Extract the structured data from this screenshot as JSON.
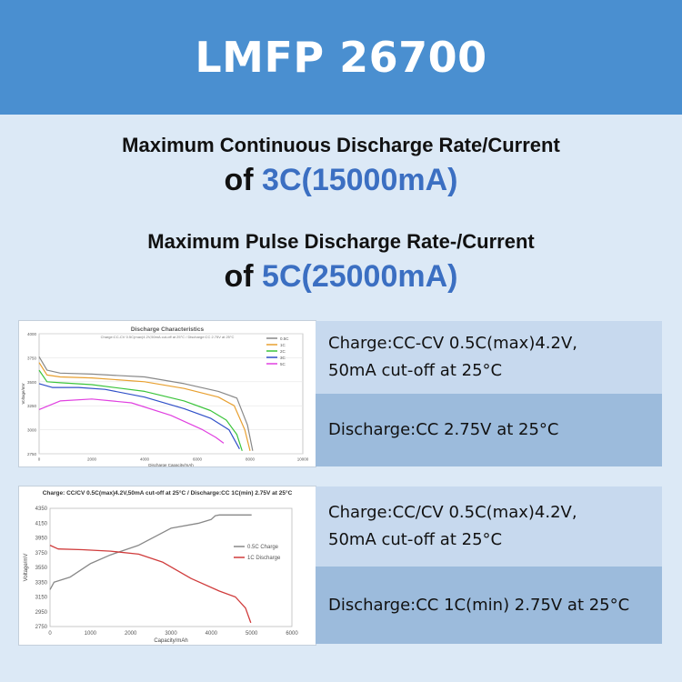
{
  "header": {
    "title": "LMFP 26700"
  },
  "specs": [
    {
      "line1": "Maximum Continuous Discharge Rate/Current",
      "prefix": "of ",
      "value": "3C(15000mA)"
    },
    {
      "line1": "Maximum Pulse Discharge Rate-/Current",
      "prefix": "of ",
      "value": "5C(25000mA)"
    }
  ],
  "conditions": {
    "block1": {
      "charge_line1": "Charge:CC-CV 0.5C(max)4.2V,",
      "charge_line2": "50mA cut-off at 25°C",
      "discharge": "Discharge:CC 2.75V at 25°C"
    },
    "block2": {
      "charge_line1": "Charge:CC/CV 0.5C(max)4.2V,",
      "charge_line2": "50mA cut-off at 25°C",
      "discharge": "Discharge:CC 1C(min) 2.75V at 25°C"
    }
  },
  "colors": {
    "header_bg": "#4a8fd0",
    "accent_text": "#3b6fc2",
    "panel_light": "#c7d9ee",
    "panel_dark": "#9cbbdc"
  },
  "chart_data": [
    {
      "type": "line",
      "title": "Discharge Characteristics",
      "subtitle": "Charge:CC-CV 0.5C(max)4.2V,50mA cut-off at 25°C / Discharge:CC 2.75V at 25°C",
      "xlabel": "Discharge Capacity/mAh",
      "ylabel": "Voltage/mV",
      "xlim": [
        0,
        10000
      ],
      "ylim": [
        2750,
        4000
      ],
      "x_ticks": [
        "0",
        "2000",
        "4000",
        "6000",
        "8000",
        "10000"
      ],
      "y_ticks": [
        "2750",
        "3000",
        "3250",
        "3500",
        "3750",
        "4000"
      ],
      "legend_position": "top-right",
      "series": [
        {
          "name": "0.5C",
          "color": "#888888",
          "x": [
            0,
            300,
            800,
            2000,
            4000,
            5500,
            6800,
            7500,
            7900,
            8100
          ],
          "y": [
            3760,
            3620,
            3590,
            3580,
            3550,
            3480,
            3400,
            3330,
            3050,
            2780
          ]
        },
        {
          "name": "1C",
          "color": "#e8a030",
          "x": [
            0,
            300,
            800,
            2000,
            4000,
            5500,
            6800,
            7400,
            7800,
            8000
          ],
          "y": [
            3700,
            3570,
            3550,
            3540,
            3500,
            3430,
            3340,
            3250,
            3000,
            2780
          ]
        },
        {
          "name": "2C",
          "color": "#3bc43b",
          "x": [
            0,
            300,
            800,
            2000,
            4000,
            5500,
            6500,
            7100,
            7500,
            7700
          ],
          "y": [
            3620,
            3500,
            3490,
            3470,
            3400,
            3300,
            3200,
            3100,
            2950,
            2780
          ]
        },
        {
          "name": "3C",
          "color": "#3050c8",
          "x": [
            0,
            500,
            1500,
            2500,
            4000,
            5500,
            6500,
            7200,
            7600
          ],
          "y": [
            3480,
            3440,
            3440,
            3420,
            3340,
            3220,
            3120,
            3000,
            2800
          ]
        },
        {
          "name": "5C",
          "color": "#e040e0",
          "x": [
            0,
            800,
            2000,
            3500,
            5000,
            6200,
            6700,
            7000
          ],
          "y": [
            3210,
            3300,
            3320,
            3280,
            3150,
            3000,
            2920,
            2860
          ]
        }
      ]
    },
    {
      "type": "line",
      "title": "Charge: CC/CV 0.5C(max)4.2V,50mA cut-off at 25°C / Discharge:CC 1C(min) 2.75V at 25°C",
      "xlabel": "Capacity/mAh",
      "ylabel": "Voltage/mV",
      "xlim": [
        0,
        6000
      ],
      "ylim": [
        2750,
        4350
      ],
      "x_ticks": [
        "0",
        "1000",
        "2000",
        "3000",
        "4000",
        "5000",
        "6000"
      ],
      "y_ticks": [
        "2750",
        "2950",
        "3150",
        "3350",
        "3550",
        "3750",
        "3950",
        "4150",
        "4350"
      ],
      "legend_position": "right",
      "series": [
        {
          "name": "0.5C Charge",
          "color": "#888888",
          "x": [
            0,
            100,
            500,
            1000,
            1500,
            2200,
            3000,
            3700,
            4000,
            4100,
            4200,
            5000
          ],
          "y": [
            3250,
            3350,
            3420,
            3600,
            3720,
            3850,
            4080,
            4150,
            4200,
            4250,
            4260,
            4260
          ]
        },
        {
          "name": "1C Discharge",
          "color": "#d03c3c",
          "x": [
            0,
            200,
            800,
            1500,
            2200,
            2800,
            3500,
            4200,
            4600,
            4850,
            4980
          ],
          "y": [
            3850,
            3800,
            3790,
            3770,
            3730,
            3620,
            3400,
            3230,
            3150,
            3000,
            2800
          ]
        }
      ]
    }
  ]
}
